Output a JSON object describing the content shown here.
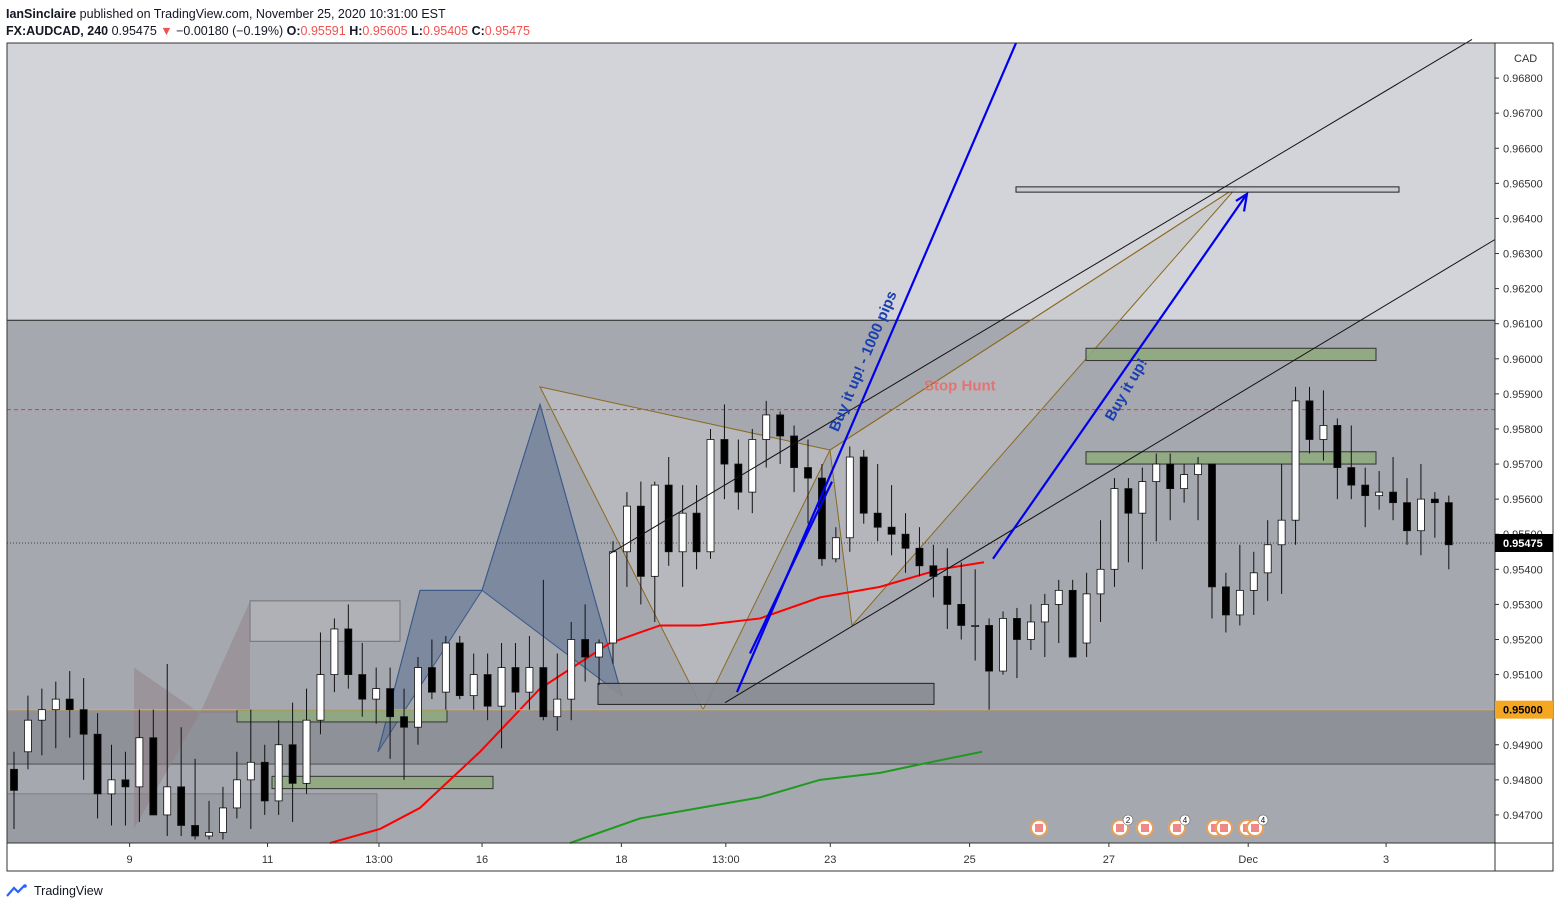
{
  "header": {
    "author": "IanSinclaire",
    "published_text": " published on TradingView.com, November 25, 2020 10:31:00 EST",
    "symbol": "FX:AUDCAD, 240",
    "last": "0.95475",
    "change_arrow": "▼",
    "change": "−0.00180 (−0.19%)",
    "o_label": "O:",
    "o_value": "0.95591",
    "h_label": "H:",
    "h_value": "0.95605",
    "l_label": "L:",
    "l_value": "0.95405",
    "c_label": "C:",
    "c_value": "0.95475"
  },
  "footer": {
    "brand": "TradingView"
  },
  "colors": {
    "up_candle": "#ffffff",
    "down_candle": "#000000",
    "ema_fast": "#ff0000",
    "ema_slow": "#1e9a1e",
    "arrow": "#0000ee",
    "harmonic_blue": "#3a5a8a",
    "harmonic_gold": "#8a6a20",
    "zone_green": "#8faa80",
    "price_label_orange": "#f5a623"
  },
  "chart_data": {
    "type": "candlestick",
    "price_unit": "CAD",
    "ylim": [
      0.9462,
      0.969
    ],
    "y_ticks": [
      "0.94700",
      "0.94800",
      "0.94900",
      "0.95100",
      "0.95200",
      "0.95300",
      "0.95400",
      "0.95500",
      "0.95600",
      "0.95700",
      "0.95800",
      "0.95900",
      "0.96000",
      "0.96100",
      "0.96200",
      "0.96300",
      "0.96400",
      "0.96500",
      "0.96600",
      "0.96700",
      "0.96800"
    ],
    "x_ticks": [
      {
        "label": "9",
        "i": 8.3
      },
      {
        "label": "11",
        "i": 18.2
      },
      {
        "label": "13:00",
        "i": 26.2
      },
      {
        "label": "16",
        "i": 33.6
      },
      {
        "label": "18",
        "i": 43.6
      },
      {
        "label": "13:00",
        "i": 51.1
      },
      {
        "label": "23",
        "i": 58.6
      },
      {
        "label": "25",
        "i": 68.6
      },
      {
        "label": "27",
        "i": 78.6
      },
      {
        "label": "Dec",
        "i": 88.6
      },
      {
        "label": "3",
        "i": 98.5
      }
    ],
    "current_price": "0.95475",
    "level_price": "0.95000",
    "annotations": {
      "stop_hunt": "Stop Hunt",
      "buy_1000": "Buy it up! - 1000 pips",
      "buy": "Buy it up!"
    },
    "candles": [
      [
        0.9483,
        0.9488,
        0.9466,
        0.9477
      ],
      [
        0.9488,
        0.9504,
        0.9483,
        0.9497
      ],
      [
        0.9497,
        0.9506,
        0.9487,
        0.95
      ],
      [
        0.95,
        0.9508,
        0.9489,
        0.9503
      ],
      [
        0.9503,
        0.9511,
        0.9492,
        0.95
      ],
      [
        0.95,
        0.9509,
        0.948,
        0.9493
      ],
      [
        0.9493,
        0.9499,
        0.9469,
        0.9476
      ],
      [
        0.9476,
        0.949,
        0.9467,
        0.948
      ],
      [
        0.948,
        0.9488,
        0.9467,
        0.9478
      ],
      [
        0.9478,
        0.95,
        0.9468,
        0.9492
      ],
      [
        0.9492,
        0.95,
        0.947,
        0.947
      ],
      [
        0.947,
        0.9513,
        0.9464,
        0.9478
      ],
      [
        0.9478,
        0.9495,
        0.9464,
        0.9467
      ],
      [
        0.9467,
        0.9486,
        0.9463,
        0.9464
      ],
      [
        0.9464,
        0.9474,
        0.9463,
        0.9465
      ],
      [
        0.9465,
        0.9478,
        0.9463,
        0.9472
      ],
      [
        0.9472,
        0.9488,
        0.9469,
        0.948
      ],
      [
        0.948,
        0.95,
        0.9466,
        0.9485
      ],
      [
        0.9485,
        0.949,
        0.947,
        0.9474
      ],
      [
        0.9474,
        0.9497,
        0.947,
        0.949
      ],
      [
        0.949,
        0.9502,
        0.9468,
        0.9479
      ],
      [
        0.9479,
        0.9506,
        0.9476,
        0.9497
      ],
      [
        0.9497,
        0.9522,
        0.9493,
        0.951
      ],
      [
        0.951,
        0.9526,
        0.9505,
        0.9523
      ],
      [
        0.9523,
        0.953,
        0.9506,
        0.951
      ],
      [
        0.951,
        0.9519,
        0.9498,
        0.9503
      ],
      [
        0.9503,
        0.9512,
        0.9496,
        0.9506
      ],
      [
        0.9506,
        0.9512,
        0.9486,
        0.9498
      ],
      [
        0.9498,
        0.9506,
        0.948,
        0.9495
      ],
      [
        0.9495,
        0.9515,
        0.949,
        0.9512
      ],
      [
        0.9512,
        0.952,
        0.9503,
        0.9505
      ],
      [
        0.9505,
        0.9521,
        0.95,
        0.9519
      ],
      [
        0.9519,
        0.9521,
        0.9503,
        0.9504
      ],
      [
        0.9504,
        0.9516,
        0.95,
        0.951
      ],
      [
        0.951,
        0.9516,
        0.9497,
        0.9501
      ],
      [
        0.9501,
        0.9519,
        0.9489,
        0.9512
      ],
      [
        0.9512,
        0.9519,
        0.95,
        0.9505
      ],
      [
        0.9505,
        0.9521,
        0.95,
        0.9512
      ],
      [
        0.9512,
        0.9537,
        0.9497,
        0.9498
      ],
      [
        0.9498,
        0.9516,
        0.9494,
        0.9503
      ],
      [
        0.9503,
        0.9525,
        0.9497,
        0.952
      ],
      [
        0.952,
        0.953,
        0.9508,
        0.9515
      ],
      [
        0.9515,
        0.952,
        0.9507,
        0.9519
      ],
      [
        0.9519,
        0.9548,
        0.9513,
        0.9545
      ],
      [
        0.9545,
        0.9562,
        0.9535,
        0.9558
      ],
      [
        0.9558,
        0.9565,
        0.953,
        0.9538
      ],
      [
        0.9538,
        0.9565,
        0.9525,
        0.9564
      ],
      [
        0.9564,
        0.9572,
        0.9541,
        0.9545
      ],
      [
        0.9545,
        0.9564,
        0.9535,
        0.9556
      ],
      [
        0.9556,
        0.9564,
        0.954,
        0.9545
      ],
      [
        0.9545,
        0.958,
        0.9543,
        0.9577
      ],
      [
        0.9577,
        0.9587,
        0.956,
        0.957
      ],
      [
        0.957,
        0.9577,
        0.9557,
        0.9562
      ],
      [
        0.9562,
        0.958,
        0.9556,
        0.9577
      ],
      [
        0.9577,
        0.9588,
        0.9569,
        0.9584
      ],
      [
        0.9584,
        0.9585,
        0.957,
        0.9578
      ],
      [
        0.9578,
        0.9581,
        0.9562,
        0.9569
      ],
      [
        0.9569,
        0.9577,
        0.9553,
        0.9566
      ],
      [
        0.9566,
        0.957,
        0.9541,
        0.9543
      ],
      [
        0.9543,
        0.9552,
        0.9542,
        0.9549
      ],
      [
        0.9549,
        0.9575,
        0.9545,
        0.9572
      ],
      [
        0.9572,
        0.9574,
        0.9553,
        0.9556
      ],
      [
        0.9556,
        0.957,
        0.9548,
        0.9552
      ],
      [
        0.9552,
        0.9564,
        0.9544,
        0.955
      ],
      [
        0.955,
        0.9556,
        0.9539,
        0.9546
      ],
      [
        0.9546,
        0.9552,
        0.9538,
        0.9541
      ],
      [
        0.9541,
        0.9547,
        0.9532,
        0.9538
      ],
      [
        0.9538,
        0.9546,
        0.9523,
        0.953
      ],
      [
        0.953,
        0.9542,
        0.952,
        0.9524
      ],
      [
        0.9524,
        0.954,
        0.9514,
        0.9524
      ],
      [
        0.9524,
        0.9526,
        0.95,
        0.9511
      ],
      [
        0.9511,
        0.9528,
        0.951,
        0.9526
      ],
      [
        0.9526,
        0.9529,
        0.9509,
        0.952
      ],
      [
        0.952,
        0.953,
        0.9517,
        0.9525
      ],
      [
        0.9525,
        0.9533,
        0.9515,
        0.953
      ],
      [
        0.953,
        0.9537,
        0.9519,
        0.9534
      ],
      [
        0.9534,
        0.9537,
        0.9517,
        0.9515
      ],
      [
        0.9519,
        0.9539,
        0.9515,
        0.9533
      ],
      [
        0.9533,
        0.9554,
        0.9525,
        0.954
      ],
      [
        0.954,
        0.9566,
        0.9535,
        0.9563
      ],
      [
        0.9563,
        0.9566,
        0.9542,
        0.9556
      ],
      [
        0.9556,
        0.9569,
        0.954,
        0.9565
      ],
      [
        0.9565,
        0.9573,
        0.9548,
        0.957
      ],
      [
        0.957,
        0.9573,
        0.9554,
        0.9563
      ],
      [
        0.9563,
        0.957,
        0.9559,
        0.9567
      ],
      [
        0.9567,
        0.9572,
        0.9554,
        0.957
      ],
      [
        0.957,
        0.957,
        0.9526,
        0.9535
      ],
      [
        0.9535,
        0.9539,
        0.9522,
        0.9527
      ],
      [
        0.9527,
        0.9547,
        0.9524,
        0.9534
      ],
      [
        0.9534,
        0.9545,
        0.9527,
        0.9539
      ],
      [
        0.9539,
        0.9554,
        0.9531,
        0.9547
      ],
      [
        0.9547,
        0.957,
        0.9533,
        0.9554
      ],
      [
        0.9554,
        0.9592,
        0.9547,
        0.9588
      ],
      [
        0.9588,
        0.9592,
        0.9573,
        0.9577
      ],
      [
        0.9577,
        0.9591,
        0.9571,
        0.9581
      ],
      [
        0.9581,
        0.9583,
        0.956,
        0.9569
      ],
      [
        0.9569,
        0.9581,
        0.956,
        0.9564
      ],
      [
        0.9564,
        0.9569,
        0.9552,
        0.9561
      ],
      [
        0.9561,
        0.9568,
        0.9557,
        0.9562
      ],
      [
        0.9562,
        0.9572,
        0.9554,
        0.9559
      ],
      [
        0.9559,
        0.9566,
        0.9547,
        0.9551
      ],
      [
        0.9551,
        0.957,
        0.9544,
        0.956
      ],
      [
        0.956,
        0.9562,
        0.9549,
        0.9559
      ],
      [
        0.9559,
        0.9561,
        0.954,
        0.9547
      ]
    ]
  }
}
